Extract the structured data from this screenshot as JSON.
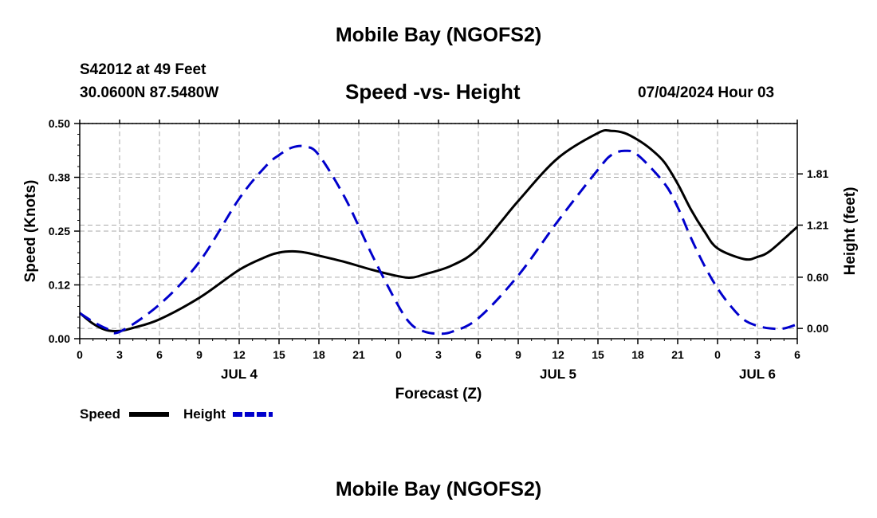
{
  "header": {
    "title": "Mobile Bay (NGOFS2)",
    "station": "S42012 at 49 Feet",
    "coordinates": "30.0600N  87.5480W",
    "subtitle": "Speed -vs- Height",
    "timestamp": "07/04/2024 Hour 03"
  },
  "footer": {
    "title": "Mobile Bay (NGOFS2)"
  },
  "colors": {
    "speed": "#000000",
    "height": "#0000cc",
    "grid": "#aaaaaa"
  },
  "chart_data": {
    "type": "line",
    "xlabel": "Forecast (Z)",
    "ylabel": "Speed (Knots)",
    "ylabel_right": "Height (feet)",
    "x_unit": "hours",
    "xlim": [
      0,
      54
    ],
    "ylim": [
      0,
      0.5
    ],
    "ylim_right": [
      -0.12,
      2.4
    ],
    "x_ticks": [
      0,
      3,
      6,
      9,
      12,
      15,
      18,
      21,
      24,
      27,
      30,
      33,
      36,
      39,
      42,
      45,
      48,
      51,
      54
    ],
    "x_tick_labels": [
      "0",
      "3",
      "6",
      "9",
      "12",
      "15",
      "18",
      "21",
      "0",
      "3",
      "6",
      "9",
      "12",
      "15",
      "18",
      "21",
      "0",
      "3",
      "6"
    ],
    "date_labels": [
      {
        "hour": 12,
        "label": "JUL 4"
      },
      {
        "hour": 36,
        "label": "JUL 5"
      },
      {
        "hour": 51,
        "label": "JUL 6"
      }
    ],
    "y_ticks": [
      0,
      0.125,
      0.25,
      0.375,
      0.5
    ],
    "y_tick_labels": [
      "0.00",
      "0.12",
      "0.25",
      "0.38",
      "0.50"
    ],
    "y_right_ticks": [
      0,
      0.6,
      1.21,
      1.81
    ],
    "y_right_tick_labels": [
      "0.00",
      "0.60",
      "1.21",
      "1.81"
    ],
    "grid": true,
    "legend_position": "bottom-left",
    "series": [
      {
        "name": "Speed",
        "axis": "left",
        "style": "solid",
        "x": [
          0,
          1,
          2,
          3,
          4,
          6,
          9,
          12,
          14,
          15,
          16,
          17,
          18,
          20,
          22,
          24,
          25,
          26,
          28,
          30,
          33,
          36,
          39,
          40,
          41,
          42,
          43,
          44,
          45,
          46,
          47,
          48,
          50,
          51,
          52,
          54
        ],
        "values": [
          0.06,
          0.035,
          0.02,
          0.018,
          0.025,
          0.045,
          0.095,
          0.16,
          0.19,
          0.2,
          0.203,
          0.2,
          0.193,
          0.178,
          0.16,
          0.145,
          0.142,
          0.15,
          0.17,
          0.21,
          0.32,
          0.42,
          0.478,
          0.483,
          0.478,
          0.462,
          0.44,
          0.41,
          0.36,
          0.3,
          0.25,
          0.21,
          0.185,
          0.19,
          0.205,
          0.26
        ]
      },
      {
        "name": "Height",
        "axis": "right",
        "style": "dashed",
        "x": [
          0,
          1,
          2,
          3,
          6,
          9,
          12,
          14,
          15,
          16,
          17,
          18,
          20,
          22,
          24,
          25,
          26,
          27,
          28,
          30,
          33,
          36,
          39,
          40,
          41,
          42,
          44,
          45,
          46,
          47,
          48,
          49,
          50,
          51,
          52,
          53,
          54
        ],
        "values": [
          0.18,
          0.08,
          0.0,
          -0.04,
          0.28,
          0.78,
          1.52,
          1.9,
          2.03,
          2.12,
          2.13,
          2.03,
          1.52,
          0.86,
          0.26,
          0.04,
          -0.04,
          -0.06,
          -0.04,
          0.12,
          0.62,
          1.26,
          1.86,
          2.03,
          2.08,
          2.03,
          1.7,
          1.42,
          1.06,
          0.74,
          0.47,
          0.26,
          0.1,
          0.03,
          0.0,
          0.0,
          0.05
        ]
      }
    ]
  }
}
